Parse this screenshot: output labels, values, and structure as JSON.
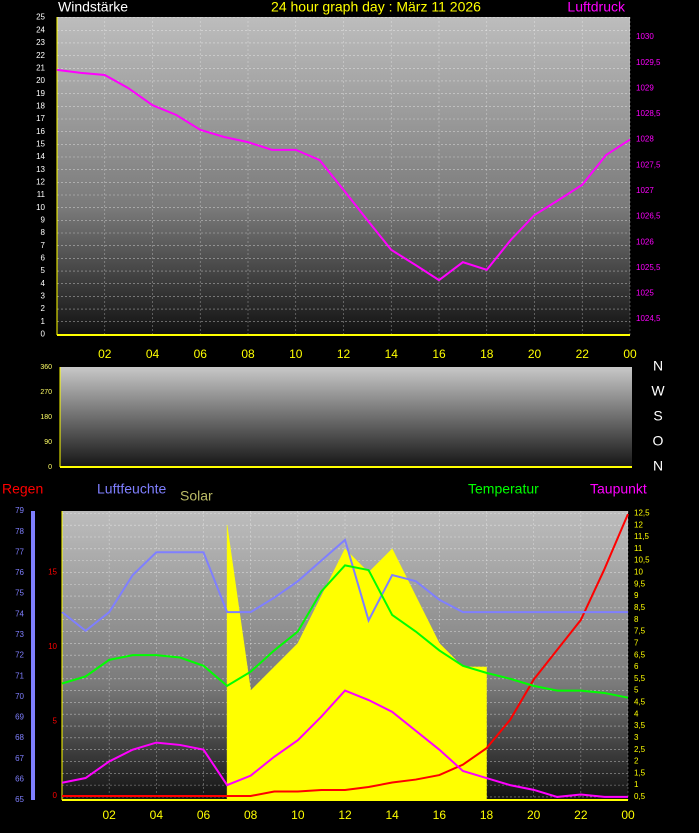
{
  "chart_data": [
    {
      "type": "line",
      "title": "24 hour graph day : März 11 2026",
      "y_label": "Windstärke",
      "x": [
        0,
        1,
        2,
        3,
        4,
        5,
        6,
        7,
        8,
        9,
        10,
        11,
        12,
        13,
        14,
        15,
        16,
        17,
        18,
        19,
        20,
        21,
        22,
        23,
        24
      ],
      "xlim": [
        0,
        24
      ],
      "xticks": [
        {
          "value": 2,
          "label": "02"
        },
        {
          "value": 4,
          "label": "04"
        },
        {
          "value": 6,
          "label": "06"
        },
        {
          "value": 8,
          "label": "08"
        },
        10,
        12,
        14,
        16,
        18,
        20,
        22,
        {
          "value": 24,
          "label": "00"
        }
      ],
      "ylim": [
        -0.05,
        25.05
      ],
      "yticks": [
        0,
        1,
        2,
        3,
        4,
        5,
        6,
        7,
        8,
        9,
        10,
        11,
        12,
        13,
        14,
        15,
        16,
        17,
        18,
        19,
        20,
        21,
        22,
        23,
        24,
        25
      ],
      "y2lim": [
        1024.19,
        1030.39
      ],
      "y2ticks": [
        {
          "value": 1024.5,
          "label": "1024,5"
        },
        1025,
        {
          "value": 1025.5,
          "label": "1025,5"
        },
        1026,
        {
          "value": 1026.5,
          "label": "1026,5"
        },
        1027,
        {
          "value": 1027.5,
          "label": "1027,5"
        },
        1028,
        {
          "value": 1028.5,
          "label": "1028,5"
        },
        1029,
        {
          "value": 1029.5,
          "label": "1029,5"
        },
        1030
      ],
      "grid": true,
      "series": [
        {
          "name": "Luftdruck",
          "color": "#ff00ff",
          "axis": "y2",
          "values": [
            1029.36,
            1029.3,
            1029.26,
            1029.0,
            1028.67,
            1028.48,
            1028.19,
            1028.05,
            1027.95,
            1027.8,
            1027.8,
            1027.6,
            1027.02,
            1026.43,
            1025.85,
            1025.56,
            1025.26,
            1025.61,
            1025.46,
            1026.04,
            1026.53,
            1026.82,
            1027.12,
            1027.7,
            1028.0
          ]
        }
      ]
    },
    {
      "type": "line",
      "ylim": [
        0,
        360
      ],
      "yticks": [
        0,
        90,
        180,
        270,
        360
      ],
      "y2lim": [
        0,
        360
      ],
      "y2ticks": [
        {
          "value": 360,
          "label": "N"
        },
        {
          "value": 270,
          "label": "W"
        },
        {
          "value": 180,
          "label": "S"
        },
        {
          "value": 90,
          "label": "O"
        },
        {
          "value": 0,
          "label": "N"
        }
      ],
      "grid": false,
      "series": []
    },
    {
      "type": "line",
      "x": [
        0,
        1,
        2,
        3,
        4,
        5,
        6,
        7,
        8,
        9,
        10,
        11,
        12,
        13,
        14,
        15,
        16,
        17,
        18,
        19,
        20,
        21,
        22,
        23,
        24
      ],
      "xlim": [
        0,
        24
      ],
      "xticks": [
        {
          "value": 2,
          "label": "02"
        },
        {
          "value": 4,
          "label": "04"
        },
        {
          "value": 6,
          "label": "06"
        },
        {
          "value": 8,
          "label": "08"
        },
        10,
        12,
        14,
        16,
        18,
        20,
        22,
        {
          "value": 24,
          "label": "00"
        }
      ],
      "ylim": [
        65,
        79
      ],
      "yticks": [
        65,
        66,
        67,
        68,
        69,
        70,
        71,
        72,
        73,
        74,
        75,
        76,
        77,
        78,
        79
      ],
      "y2lim": [
        0.37,
        12.6
      ],
      "y2ticks": [
        {
          "value": 0.5,
          "label": "0,5"
        },
        1,
        {
          "value": 1.5,
          "label": "1,5"
        },
        2,
        {
          "value": 2.5,
          "label": "2,5"
        },
        3,
        {
          "value": 3.5,
          "label": "3,5"
        },
        4,
        {
          "value": 4.5,
          "label": "4,5"
        },
        5,
        {
          "value": 5.5,
          "label": "5,5"
        },
        6,
        {
          "value": 6.5,
          "label": "6,5"
        },
        7,
        {
          "value": 7.5,
          "label": "7,5"
        },
        8,
        {
          "value": 8.5,
          "label": "8,5"
        },
        9,
        {
          "value": 9.5,
          "label": "9,5"
        },
        10,
        {
          "value": 10.5,
          "label": "10,5"
        },
        11,
        {
          "value": 11.5,
          "label": "11,5"
        },
        12,
        {
          "value": 12.5,
          "label": "12,5"
        }
      ],
      "y3lim": [
        -0.27,
        19.1
      ],
      "y3ticks": [
        0,
        5,
        10,
        15
      ],
      "grid": true,
      "series": [
        {
          "name": "Regen",
          "color": "#ff0000",
          "axis": "y3",
          "values": [
            0,
            0,
            0,
            0,
            0,
            0,
            0,
            0,
            0,
            0.3,
            0.3,
            0.4,
            0.4,
            0.6,
            0.9,
            1.1,
            1.4,
            2.1,
            3.2,
            5.1,
            7.8,
            9.8,
            11.8,
            15.2,
            18.9
          ]
        },
        {
          "name": "Luftfeuchte",
          "color": "#7f7fff",
          "axis": "y",
          "values": [
            74.1,
            73.2,
            74.1,
            75.9,
            77.0,
            77.0,
            77.0,
            74.1,
            74.1,
            74.8,
            75.6,
            76.6,
            77.6,
            73.7,
            75.9,
            75.6,
            74.7,
            74.1,
            74.1,
            74.1,
            74.1,
            74.1,
            74.1,
            74.1,
            74.1
          ]
        },
        {
          "name": "Solar",
          "color": "#ffff00",
          "axis": "y2",
          "values": [
            null,
            null,
            null,
            null,
            null,
            null,
            null,
            12,
            5,
            6,
            7,
            9,
            11,
            10,
            11,
            9,
            7,
            6,
            6,
            null,
            null,
            null,
            null,
            null,
            null
          ]
        },
        {
          "name": "Temperatur",
          "color": "#00ff00",
          "axis": "y2",
          "values": [
            5.3,
            5.6,
            6.3,
            6.5,
            6.5,
            6.4,
            6.05,
            5.2,
            5.8,
            6.7,
            7.5,
            9.2,
            10.3,
            10.1,
            8.2,
            7.5,
            6.7,
            6.05,
            5.75,
            5.5,
            5.2,
            5.0,
            5.0,
            4.9,
            4.7
          ]
        },
        {
          "name": "Taupunkt",
          "color": "#ff00ff",
          "axis": "y2",
          "values": [
            1.1,
            1.3,
            2.0,
            2.5,
            2.8,
            2.7,
            2.5,
            1.0,
            1.4,
            2.2,
            2.9,
            3.9,
            5.0,
            4.6,
            4.1,
            3.3,
            2.5,
            1.6,
            1.3,
            1.0,
            0.8,
            0.5,
            0.6,
            0.5,
            0.5
          ]
        }
      ]
    }
  ]
}
